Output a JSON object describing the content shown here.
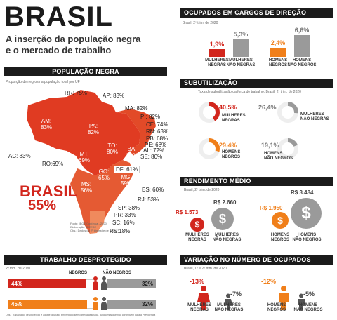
{
  "colors": {
    "red": "#d2261d",
    "orange": "#f07f1a",
    "gray": "#9a9a9a",
    "dark": "#1b1b1b"
  },
  "title": {
    "main": "BRASIL",
    "line1": "A inserção da população negra",
    "line2": "e o mercado de trabalho"
  },
  "pop": {
    "header": "POPULAÇÃO NEGRA",
    "subtitle": "Proporção de negros na população total por UF",
    "states": {
      "RR": "RR: 75%",
      "AP": "AP: 83%",
      "AM": "AM:\n83%",
      "PA": "PA:\n82%",
      "MA": "MA: 82%",
      "PI": "PI: 82%",
      "CE": "CE: 74%",
      "RN": "RN: 63%",
      "PB": "PB: 68%",
      "PE": "PE: 68%",
      "AL": "AL: 72%",
      "SE": "SE: 80%",
      "BA": "BA:\n81%",
      "TO": "TO:\n80%",
      "MT": "MT:\n69%",
      "RO": "RO:69%",
      "AC": "AC: 83%",
      "GO": "GO:\n65%",
      "DF": "DF: 61%",
      "MG": "MG:\n59%",
      "MS": "MS:\n56%",
      "ES": "ES: 60%",
      "RJ": "RJ: 53%",
      "SP": "SP: 38%",
      "PR": "PR: 33%",
      "SC": "SC: 16%",
      "RS": "RS:18%"
    },
    "brasil_label": "BRASIL",
    "brasil_value": "55%",
    "source": [
      "Fonte: IBGE Contínua - 2020",
      "Elaboração: DIEESE",
      "Obs.: Dados do 2º trimestre de 2020"
    ]
  },
  "direcao": {
    "header": "OCUPADOS EM CARGOS DE DIREÇÃO",
    "subtitle": "Brasil, 2º trim. de 2020",
    "bars": [
      {
        "value": "1,9%",
        "label": "MULHERES\nNEGRAS",
        "color": "#d2261d",
        "pct": 1.9
      },
      {
        "value": "5,3%",
        "label": "MULHERES\nNÃO NEGRAS",
        "color": "#9a9a9a",
        "pct": 5.3
      },
      {
        "value": "2,4%",
        "label": "HOMENS\nNEGROS",
        "color": "#f07f1a",
        "pct": 2.4
      },
      {
        "value": "6,6%",
        "label": "HOMENS\nNÃO NEGROS",
        "color": "#9a9a9a",
        "pct": 6.6
      }
    ]
  },
  "subutil": {
    "header": "SUBUTILIZAÇÃO",
    "subtitle": "Taxa de subutilização da força de trabalho, Brasil, 2º trim. de 2020",
    "items": [
      {
        "value": "40,5%",
        "label": "MULHERES\nNEGRAS",
        "color": "#d2261d",
        "pct": 40.5
      },
      {
        "value": "26,4%",
        "label": "MULHERES\nNÃO NEGRAS",
        "color": "#9a9a9a",
        "pct": 26.4
      },
      {
        "value": "29,4%",
        "label": "HOMENS\nNEGROS",
        "color": "#f07f1a",
        "pct": 29.4
      },
      {
        "value": "19,1%",
        "label": "HOMENS\nNÃO NEGROS",
        "color": "#9a9a9a",
        "pct": 19.1
      }
    ]
  },
  "rendimento": {
    "header": "RENDIMENTO MÉDIO",
    "subtitle": "Brasil, 2º trim. de 2020",
    "items": [
      {
        "value": "R$ 1.573",
        "label": "MULHERES\nNEGRAS"
      },
      {
        "value": "R$ 2.660",
        "label": "MULHERES\nNÃO NEGRAS"
      },
      {
        "value": "R$ 1.950",
        "label": "HOMENS\nNEGROS"
      },
      {
        "value": "R$ 3.484",
        "label": "HOMENS\nNÃO NEGROS"
      }
    ],
    "symbol": "$"
  },
  "desprot": {
    "header": "TRABALHO DESPROTEGIDO",
    "subtitle": "2º trim. de 2020",
    "col_negros": "NEGROS",
    "col_nao": "NÃO NEGROS",
    "rows": [
      {
        "negros": "44%",
        "nao": "32%",
        "ncolor": "#d2261d",
        "npct": 44,
        "xpct": 32
      },
      {
        "negros": "45%",
        "nao": "32%",
        "ncolor": "#f07f1a",
        "npct": 45,
        "xpct": 32
      }
    ],
    "obs": "Obs.: Trabalhador desprotegido é aquele ocupado empregado sem carteira assinada, autônomos que não contribuem para a Previdência"
  },
  "variacao": {
    "header": "VARIAÇÃO NO NÚMERO DE OCUPADOS",
    "subtitle": "Brasil, 1º e 2º trim. de 2020",
    "items": [
      {
        "value": "-13%",
        "label": "MULHERES\nNEGRAS"
      },
      {
        "value": "-7%",
        "label": "MULHERES\nNÃO NEGRAS"
      },
      {
        "value": "-12%",
        "label": "HOMENS\nNEGROS"
      },
      {
        "value": "-5%",
        "label": "HOMENS\nNÃO NEGROS"
      }
    ]
  }
}
